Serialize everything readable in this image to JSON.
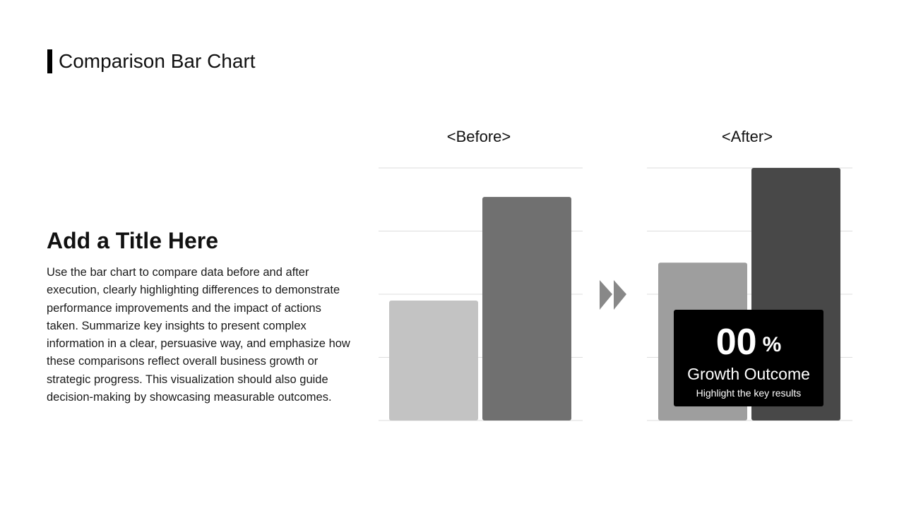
{
  "header": {
    "title": "Comparison Bar Chart"
  },
  "content": {
    "title": "Add a Title Here",
    "body": "Use the bar chart to compare data before and after execution, clearly highlighting differences to demonstrate performance improvements and the impact of actions taken. Summarize key insights to present complex information in a clear, persuasive way, and emphasize how these comparisons reflect overall business growth or strategic progress. This visualization should also guide decision-making by showcasing measurable outcomes."
  },
  "callout": {
    "value": "00",
    "unit": "%",
    "label": "Growth Outcome",
    "sublabel": "Highlight the key results"
  },
  "icons": {
    "divider": "double-chevron-right-icon"
  },
  "colors": {
    "grid": "#dddddd",
    "before_bar_1": "#c3c3c3",
    "before_bar_2": "#707070",
    "after_bar_1": "#9e9e9e",
    "after_bar_2": "#484848",
    "arrow": "#888888",
    "callout_bg": "#000000"
  },
  "chart_data": [
    {
      "type": "bar",
      "title": "<Before>",
      "categories": [
        "",
        ""
      ],
      "values": [
        47.5,
        88.5
      ],
      "ylim": [
        0,
        100
      ],
      "grid": true,
      "legend": "none"
    },
    {
      "type": "bar",
      "title": "<After>",
      "categories": [
        "",
        ""
      ],
      "values": [
        62.5,
        100
      ],
      "ylim": [
        0,
        100
      ],
      "grid": true,
      "legend": "none"
    }
  ]
}
